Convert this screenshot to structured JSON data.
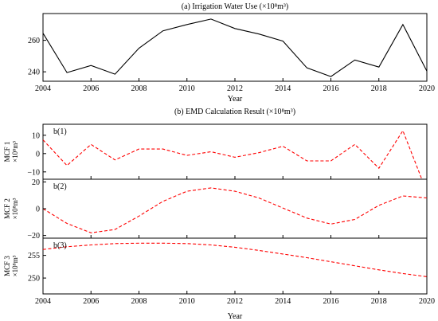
{
  "chart_data": [
    {
      "type": "line",
      "title": "(a) Irrigation Water Use (×10⁸m³)",
      "xlabel": "Year",
      "ylabel": "",
      "xlim": [
        2004,
        2020
      ],
      "ylim": [
        234,
        277
      ],
      "xticks": [
        "2004",
        "2006",
        "2008",
        "2010",
        "2012",
        "2014",
        "2016",
        "2018",
        "2020"
      ],
      "yticks": [
        "240",
        "260"
      ],
      "x": [
        2004,
        2005,
        2006,
        2007,
        2008,
        2009,
        2010,
        2011,
        2012,
        2013,
        2014,
        2015,
        2016,
        2017,
        2018,
        2019,
        2020
      ],
      "series": [
        {
          "name": "",
          "color": "#000000",
          "dash": "solid",
          "values": [
            264.5,
            239.5,
            244,
            238.5,
            255,
            266,
            270,
            273.5,
            267.5,
            264,
            259.5,
            242.5,
            237,
            247.5,
            243,
            270,
            240.5
          ]
        }
      ]
    },
    {
      "type": "line",
      "title": "(b) EMD Calculation Result (×10⁸m³)",
      "xlabel": "Year",
      "xlim": [
        2004,
        2020
      ],
      "xticks": [
        "2004",
        "2006",
        "2008",
        "2010",
        "2012",
        "2014",
        "2016",
        "2018",
        "2020"
      ],
      "x": [
        2004,
        2005,
        2006,
        2007,
        2008,
        2009,
        2010,
        2011,
        2012,
        2013,
        2014,
        2015,
        2016,
        2017,
        2018,
        2019,
        2020
      ],
      "panels": [
        {
          "label": "b(1)",
          "ylabel_line1": "MCF 1",
          "ylabel_line2": "×10⁸m³",
          "ylim": [
            -14,
            16
          ],
          "yticks": [
            "10",
            "0",
            "−10"
          ],
          "ytick_values": [
            10,
            0,
            -10
          ],
          "color": "#ff0000",
          "dash": "dashed",
          "values": [
            7.5,
            -6.5,
            5,
            -3.5,
            2.5,
            2.5,
            -1,
            1,
            -2,
            0.5,
            4,
            -4,
            -4,
            5,
            -8,
            12.5,
            -21
          ]
        },
        {
          "label": "b(2)",
          "ylabel_line1": "MCF 2",
          "ylabel_line2": "×10⁸m³",
          "ylim": [
            -22,
            22
          ],
          "yticks": [
            "20",
            "0",
            "−20"
          ],
          "ytick_values": [
            20,
            0,
            -20
          ],
          "color": "#ff0000",
          "dash": "dashed",
          "values": [
            0,
            -11,
            -18,
            -15.5,
            -5.5,
            5.5,
            13,
            15.5,
            13,
            8,
            0.5,
            -7,
            -11.5,
            -8,
            2.5,
            9.5,
            8
          ]
        },
        {
          "label": "b(3)",
          "ylabel_line1": "MCF 3",
          "ylabel_line2": "×10⁸m³",
          "ylim": [
            246.5,
            258.8
          ],
          "yticks": [
            "255",
            "250"
          ],
          "ytick_values": [
            255,
            250
          ],
          "color": "#ff0000",
          "dash": "dashed",
          "values": [
            256.3,
            256.9,
            257.3,
            257.6,
            257.7,
            257.7,
            257.6,
            257.3,
            256.8,
            256.1,
            255.3,
            254.5,
            253.6,
            252.7,
            251.8,
            251.0,
            250.3
          ]
        }
      ]
    }
  ]
}
